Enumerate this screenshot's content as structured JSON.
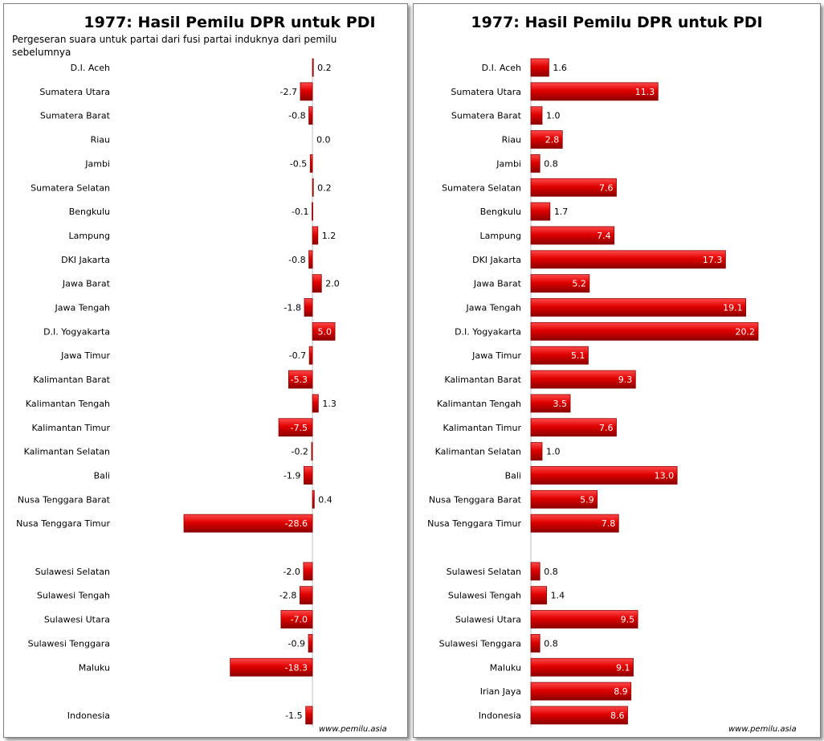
{
  "chart_data": [
    {
      "type": "bar",
      "orientation": "horizontal",
      "title": "1977: Hasil Pemilu DPR untuk PDI",
      "subtitle": "Pergeseran suara untuk partai dari fusi  partai induknya  dari pemilu sebelumnya",
      "xlim": [
        -28.6,
        20
      ],
      "categories": [
        "D.I. Aceh",
        "Sumatera Utara",
        "Sumatera Barat",
        "Riau",
        "Jambi",
        "Sumatera Selatan",
        "Bengkulu",
        "Lampung",
        "DKI Jakarta",
        "Jawa Barat",
        "Jawa Tengah",
        "D.I. Yogyakarta",
        "Jawa Timur",
        "Kalimantan Barat",
        "Kalimantan Tengah",
        "Kalimantan Timur",
        "Kalimantan Selatan",
        "Bali",
        "Nusa Tenggara Barat",
        "Nusa Tenggara Timur",
        "",
        "Sulawesi Selatan",
        "Sulawesi Tengah",
        "Sulawesi Utara",
        "Sulawesi Tenggara",
        "Maluku",
        "",
        "Indonesia"
      ],
      "values": [
        0.2,
        -2.7,
        -0.8,
        0.0,
        -0.5,
        0.2,
        -0.1,
        1.2,
        -0.8,
        2.0,
        -1.8,
        5.0,
        -0.7,
        -5.3,
        1.3,
        -7.5,
        -0.2,
        -1.9,
        0.4,
        -28.6,
        null,
        -2.0,
        -2.8,
        -7.0,
        -0.9,
        -18.3,
        null,
        -1.5
      ],
      "labels": [
        "0.2",
        "-2.7",
        "-0.8",
        "0.0",
        "-0.5",
        "0.2",
        "-0.1",
        "1.2",
        "-0.8",
        "2.0",
        "-1.8",
        "5.0",
        "-0.7",
        "-5.3",
        "1.3",
        "-7.5",
        "-0.2",
        "-1.9",
        "0.4",
        "-28.6",
        "",
        "-2.0",
        "-2.8",
        "-7.0",
        "-0.9",
        "-18.3",
        "",
        "-1.5"
      ]
    },
    {
      "type": "bar",
      "orientation": "horizontal",
      "title": "1977: Hasil Pemilu DPR untuk PDI",
      "xlim": [
        0,
        20.2
      ],
      "categories": [
        "D.I. Aceh",
        "Sumatera Utara",
        "Sumatera Barat",
        "Riau",
        "Jambi",
        "Sumatera Selatan",
        "Bengkulu",
        "Lampung",
        "DKI Jakarta",
        "Jawa Barat",
        "Jawa Tengah",
        "D.I. Yogyakarta",
        "Jawa Timur",
        "Kalimantan Barat",
        "Kalimantan Tengah",
        "Kalimantan Timur",
        "Kalimantan Selatan",
        "Bali",
        "Nusa Tenggara Barat",
        "Nusa Tenggara Timur",
        "",
        "Sulawesi Selatan",
        "Sulawesi Tengah",
        "Sulawesi Utara",
        "Sulawesi Tenggara",
        "Maluku",
        "Irian Jaya",
        "Indonesia"
      ],
      "values": [
        1.6,
        11.3,
        1.0,
        2.8,
        0.8,
        7.6,
        1.7,
        7.4,
        17.3,
        5.2,
        19.1,
        20.2,
        5.1,
        9.3,
        3.5,
        7.6,
        1.0,
        13.0,
        5.9,
        7.8,
        null,
        0.8,
        1.4,
        9.5,
        0.8,
        9.1,
        8.9,
        8.6
      ],
      "labels": [
        "1.6",
        "11.3",
        "1.0",
        "2.8",
        "0.8",
        "7.6",
        "1.7",
        "7.4",
        "17.3",
        "5.2",
        "19.1",
        "20.2",
        "5.1",
        "9.3",
        "3.5",
        "7.6",
        "1.0",
        "13.0",
        "5.9",
        "7.8",
        "",
        "0.8",
        "1.4",
        "9.5",
        "0.8",
        "9.1",
        "8.9",
        "8.6"
      ]
    }
  ],
  "watermark": "www.pemilu.asia",
  "colors": {
    "bar_fill": "#e00000",
    "bar_dark": "#8c0000",
    "bar_light": "#ff4a4a",
    "axis": "#bfbfbf"
  }
}
